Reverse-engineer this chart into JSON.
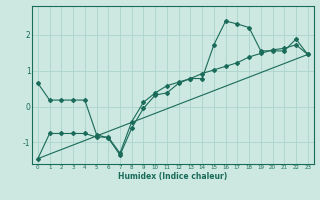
{
  "xlabel": "Humidex (Indice chaleur)",
  "background_color": "#cce8e0",
  "grid_color": "#aad4cc",
  "line_color": "#1a6b5a",
  "xlim": [
    -0.5,
    23.5
  ],
  "ylim": [
    -1.6,
    2.8
  ],
  "yticks": [
    -1,
    0,
    1,
    2
  ],
  "xticks": [
    0,
    1,
    2,
    3,
    4,
    5,
    6,
    7,
    8,
    9,
    10,
    11,
    12,
    13,
    14,
    15,
    16,
    17,
    18,
    19,
    20,
    21,
    22,
    23
  ],
  "series1_x": [
    0,
    1,
    2,
    3,
    4,
    5,
    6,
    7,
    8,
    9,
    10,
    11,
    12,
    13,
    14,
    15,
    16,
    17,
    18,
    19,
    20,
    21,
    22,
    23
  ],
  "series1_y": [
    0.65,
    0.18,
    0.18,
    0.18,
    0.18,
    -0.78,
    -0.88,
    -1.35,
    -0.6,
    -0.05,
    0.32,
    0.38,
    0.65,
    0.78,
    0.78,
    1.72,
    2.38,
    2.3,
    2.2,
    1.55,
    1.55,
    1.55,
    1.88,
    1.45
  ],
  "series2_x": [
    0,
    1,
    2,
    3,
    4,
    5,
    6,
    7,
    8,
    9,
    10,
    11,
    12,
    13,
    14,
    15,
    16,
    17,
    18,
    19,
    20,
    21,
    22,
    23
  ],
  "series2_y": [
    -1.45,
    -0.75,
    -0.75,
    -0.75,
    -0.75,
    -0.85,
    -0.85,
    -1.3,
    -0.42,
    0.12,
    0.38,
    0.58,
    0.68,
    0.78,
    0.92,
    1.02,
    1.12,
    1.22,
    1.38,
    1.48,
    1.58,
    1.62,
    1.72,
    1.45
  ],
  "series3_x": [
    0,
    23
  ],
  "series3_y": [
    -1.45,
    1.45
  ]
}
